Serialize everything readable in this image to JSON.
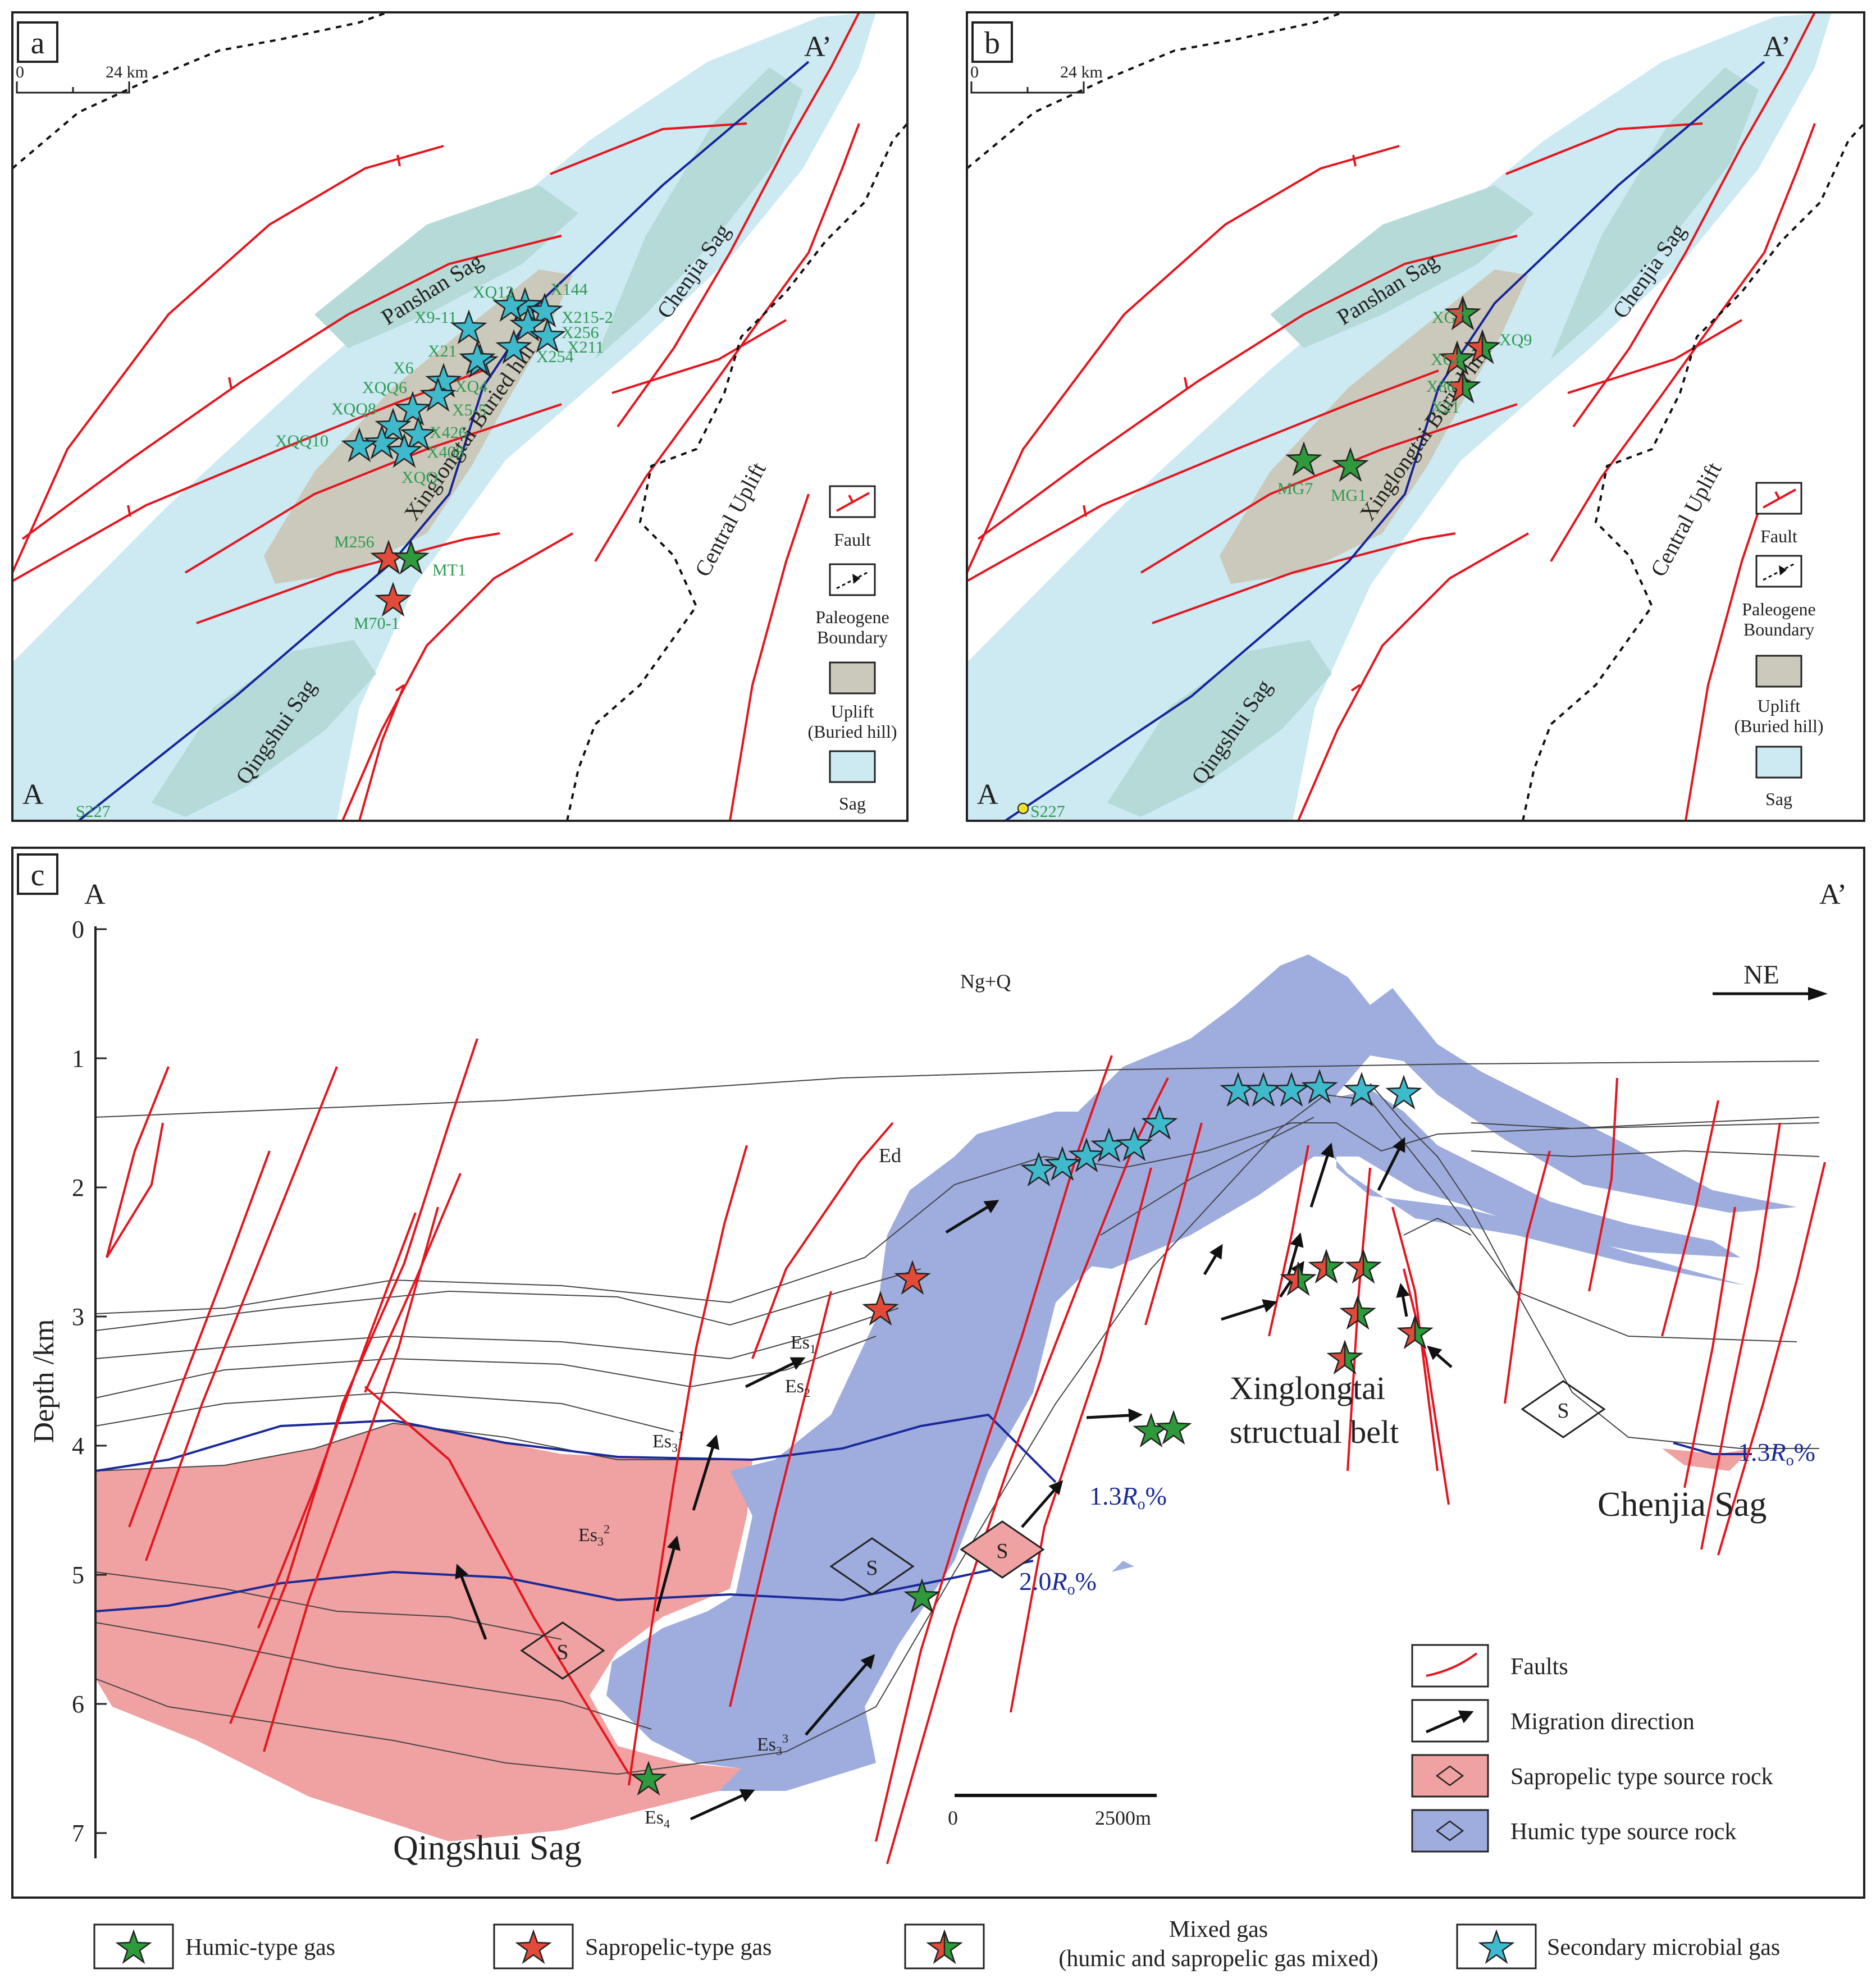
{
  "colors": {
    "sag": "#cde9f2",
    "sag_deep": "#b5dad8",
    "uplift": "#cbc9bb",
    "fault": "#e4151e",
    "section_line": "#16249a",
    "boundary": "#111111",
    "sapropelic_rock": "#f0a1a1",
    "humic_rock": "#9eadde",
    "ro_line": "#1a2a9a",
    "humic_star": "#2e9a3c",
    "sapropelic_star": "#e24a3a",
    "microbial_star": "#3fb9cc",
    "well_label": "#2e9a52"
  },
  "panel_a": {
    "label": "a",
    "scale": {
      "zero": "0",
      "end": "24 km"
    },
    "end_a": "A",
    "end_a_prime": "A’",
    "sag_labels": [
      "Panshan Sag",
      "Chenjia Sag",
      "Qingshui Sag"
    ],
    "uplift_labels": [
      "Xinglongtai Buried hill",
      "Central Uplift"
    ],
    "wells": [
      "XQ12",
      "X144",
      "X9-11",
      "X215-2",
      "X256",
      "X21",
      "X211",
      "X254",
      "XQ4",
      "X6",
      "XQQ6",
      "XQQ8",
      "X5-5",
      "XQQ10",
      "X426",
      "X408",
      "XQQ",
      "M256",
      "MT1",
      "M70-1",
      "S227"
    ],
    "legend": [
      "Fault",
      "Paleogene",
      "Boundary",
      "Uplift",
      "(Buried hill)",
      "Sag"
    ]
  },
  "panel_b": {
    "label": "b",
    "scale": {
      "zero": "0",
      "end": "24 km"
    },
    "end_a": "A",
    "end_a_prime": "A’",
    "sag_labels": [
      "Panshan Sag",
      "Chenjia Sag",
      "Qingshui Sag"
    ],
    "uplift_labels": [
      "Xinglongtai Buried hill",
      "Central Uplift"
    ],
    "wells": [
      "XG7",
      "XQ9",
      "XG8",
      "X86",
      "X21",
      "MG7",
      "MG1",
      "S227"
    ],
    "legend": [
      "Fault",
      "Paleogene",
      "Boundary",
      "Uplift",
      "(Buried hill)",
      "Sag"
    ]
  },
  "panel_c": {
    "label": "c",
    "end_a": "A",
    "end_a_prime": "A’",
    "axis_title": "Depth /km",
    "depth_ticks": [
      "0",
      "1",
      "2",
      "3",
      "4",
      "5",
      "6",
      "7"
    ],
    "direction": "NE",
    "formations": {
      "ngq": "Ng+Q",
      "ed": "Ed",
      "es1": "Es",
      "es1_sub": "1",
      "es2": "Es",
      "es2_sub": "2",
      "es31": "Es",
      "es31_sub": "3",
      "es31_sup": "1",
      "es32": "Es",
      "es32_sub": "3",
      "es32_sup": "2",
      "es33": "Es",
      "es33_sub": "3",
      "es33_sup": "3",
      "es4": "Es",
      "es4_sub": "4"
    },
    "ro_labels": [
      {
        "value": "1.3",
        "r": "R",
        "o": "o",
        "pct": "%"
      },
      {
        "value": "2.0",
        "r": "R",
        "o": "o",
        "pct": "%"
      },
      {
        "value": "1.3",
        "r": "R",
        "o": "o",
        "pct": "%"
      }
    ],
    "source_symbol": "S",
    "area_labels": {
      "xing1": "Xinglongtai",
      "xing2": "structual belt",
      "chenjia": "Chenjia  Sag",
      "qingshui": "Qingshui Sag"
    },
    "scale": {
      "zero": "0",
      "end": "2500m"
    },
    "legend": [
      "Faults",
      "Migration  direction",
      "Sapropelic type source rock",
      "Humic type source rock"
    ]
  },
  "gas_legend": [
    {
      "key": "humic",
      "label": "Humic-type gas"
    },
    {
      "key": "sapropelic",
      "label": "Sapropelic-type  gas"
    },
    {
      "key": "mixed",
      "label_line1": "Mixed gas",
      "label_line2": "(humic and sapropelic gas mixed)"
    },
    {
      "key": "microbial",
      "label": "Secondary microbial gas"
    }
  ]
}
